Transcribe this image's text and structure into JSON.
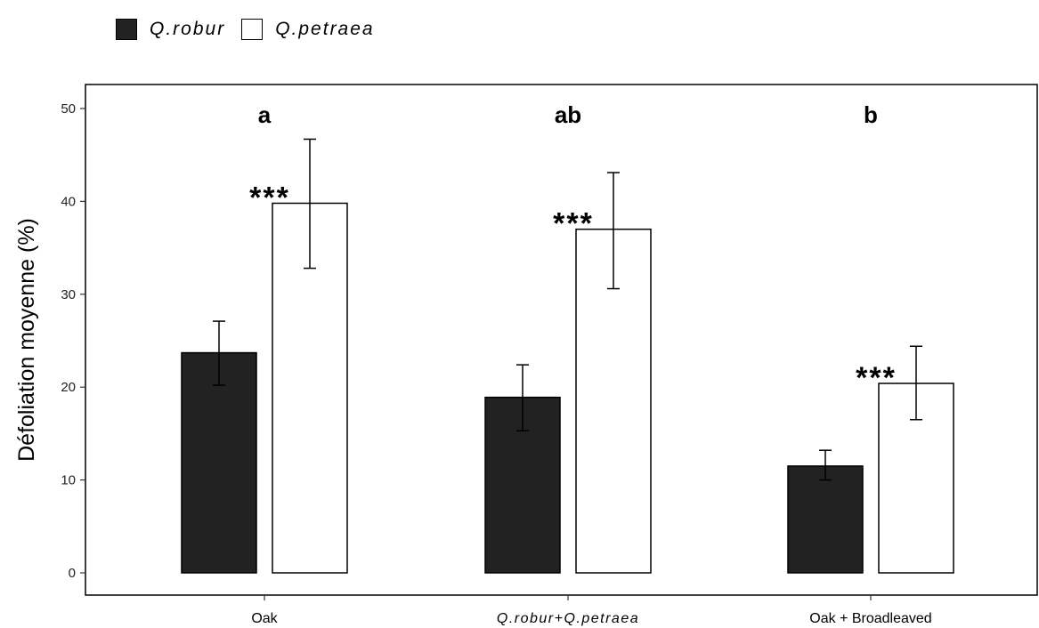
{
  "chart_data": {
    "type": "bar",
    "ylabel": "Défoliation moyenne (%)",
    "xlabel": "",
    "ylim": [
      0,
      52.5
    ],
    "yticks": [
      0,
      10,
      20,
      30,
      40,
      50
    ],
    "grid": false,
    "legend_position": "top-left",
    "categories": [
      "Oak",
      "Q.robur+Q.petraea",
      "Oak + Broadleaved"
    ],
    "group_letters": [
      "a",
      "ab",
      "b"
    ],
    "significance": [
      "***",
      "***",
      "***"
    ],
    "series": [
      {
        "name": "Q.robur",
        "color": "#222222",
        "values": [
          23.7,
          18.9,
          11.5
        ],
        "error_low": [
          20.2,
          15.3,
          10.0
        ],
        "error_high": [
          27.1,
          22.4,
          13.2
        ]
      },
      {
        "name": "Q.petraea",
        "color": "#ffffff",
        "values": [
          39.8,
          37.0,
          20.4
        ],
        "error_low": [
          32.8,
          30.6,
          16.5
        ],
        "error_high": [
          46.7,
          43.1,
          24.4
        ]
      }
    ]
  }
}
